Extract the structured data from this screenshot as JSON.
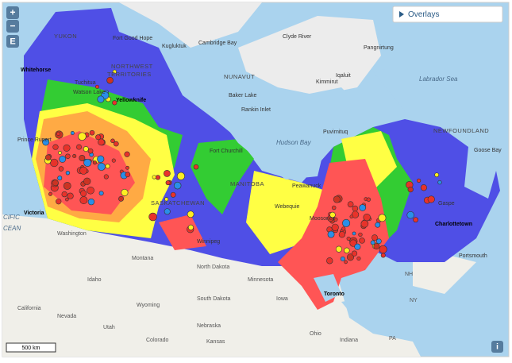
{
  "controls": {
    "zoom_in": "+",
    "zoom_out": "−",
    "layer_button": "E",
    "overlays": "Overlays",
    "scale": "500 km",
    "info": "i"
  },
  "map_labels": [
    "YUKON",
    "Fort Good Hope",
    "Cambridge Bay",
    "Kugluktuk",
    "Clyde River",
    "Pangnirtung",
    "NORTHWEST",
    "TERRITORIES",
    "NUNAVUT",
    "Iqaluit",
    "Kimmirut",
    "Labrador Sea",
    "Whitehorse",
    "Tuchitua",
    "Watson Lake",
    "Yellowknife",
    "Baker Lake",
    "Rankin Inlet",
    "Hudson Bay",
    "Fort Churchill",
    "Puvirnituq",
    "NEWFOUNDLAND",
    "Goose Bay",
    "Prince Rupert",
    "MANITOBA",
    "SASKATCHEWAN",
    "Peawanuck",
    "Webequie",
    "Victoria",
    "CIFIC",
    "CEAN",
    "Washington",
    "Winnipeg",
    "Montana",
    "North Dakota",
    "Minnesota",
    "Idaho",
    "South Dakota",
    "Wyoming",
    "Nebraska",
    "Iowa",
    "Nevada",
    "California",
    "Utah",
    "Colorado",
    "Kansas",
    "Ohio",
    "Indiana",
    "Toronto",
    "Charlottetown",
    "Gaspe",
    "Portsmouth",
    "Moosonee",
    "NH",
    "NY",
    "PA"
  ]
}
